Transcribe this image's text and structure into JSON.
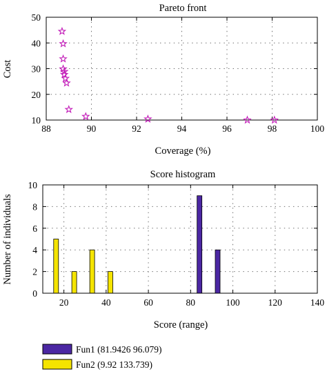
{
  "chart_data": [
    {
      "type": "scatter",
      "title": "Pareto front",
      "xlabel": "Coverage (%)",
      "ylabel": "Cost",
      "xlim": [
        88,
        100
      ],
      "ylim": [
        10,
        50
      ],
      "xticks": [
        88,
        90,
        92,
        94,
        96,
        98,
        100
      ],
      "yticks": [
        10,
        20,
        30,
        40,
        50
      ],
      "grid": true,
      "marker": "star",
      "color": "#c21bb8",
      "points": [
        {
          "x": 88.7,
          "y": 44.5
        },
        {
          "x": 88.75,
          "y": 39.7
        },
        {
          "x": 88.75,
          "y": 33.8
        },
        {
          "x": 88.75,
          "y": 29.9
        },
        {
          "x": 88.8,
          "y": 28.9
        },
        {
          "x": 88.8,
          "y": 27.7
        },
        {
          "x": 88.85,
          "y": 26.2
        },
        {
          "x": 88.9,
          "y": 24.4
        },
        {
          "x": 89.0,
          "y": 14.1
        },
        {
          "x": 89.75,
          "y": 11.4
        },
        {
          "x": 92.5,
          "y": 10.4
        },
        {
          "x": 96.9,
          "y": 10.0
        },
        {
          "x": 98.1,
          "y": 10.0
        }
      ]
    },
    {
      "type": "bar",
      "title": "Score histogram",
      "xlabel": "Score (range)",
      "ylabel": "Number of individuals",
      "xlim": [
        10,
        140
      ],
      "ylim": [
        0,
        10
      ],
      "xticks": [
        20,
        40,
        60,
        80,
        100,
        120,
        140
      ],
      "yticks": [
        0,
        2,
        4,
        6,
        8,
        10
      ],
      "grid": true,
      "legend_position": "bottom-left-outside",
      "series": [
        {
          "name": "Fun1 (81.9426 96.079)",
          "color": "#4b27a3",
          "bars": [
            {
              "x": 84.2,
              "value": 9
            },
            {
              "x": 92.8,
              "value": 4
            }
          ]
        },
        {
          "name": "Fun2 (9.92 133.739)",
          "color": "#f5e400",
          "bars": [
            {
              "x": 16.3,
              "value": 5
            },
            {
              "x": 24.9,
              "value": 2
            },
            {
              "x": 33.4,
              "value": 4
            },
            {
              "x": 42.0,
              "value": 2
            }
          ]
        }
      ]
    }
  ]
}
